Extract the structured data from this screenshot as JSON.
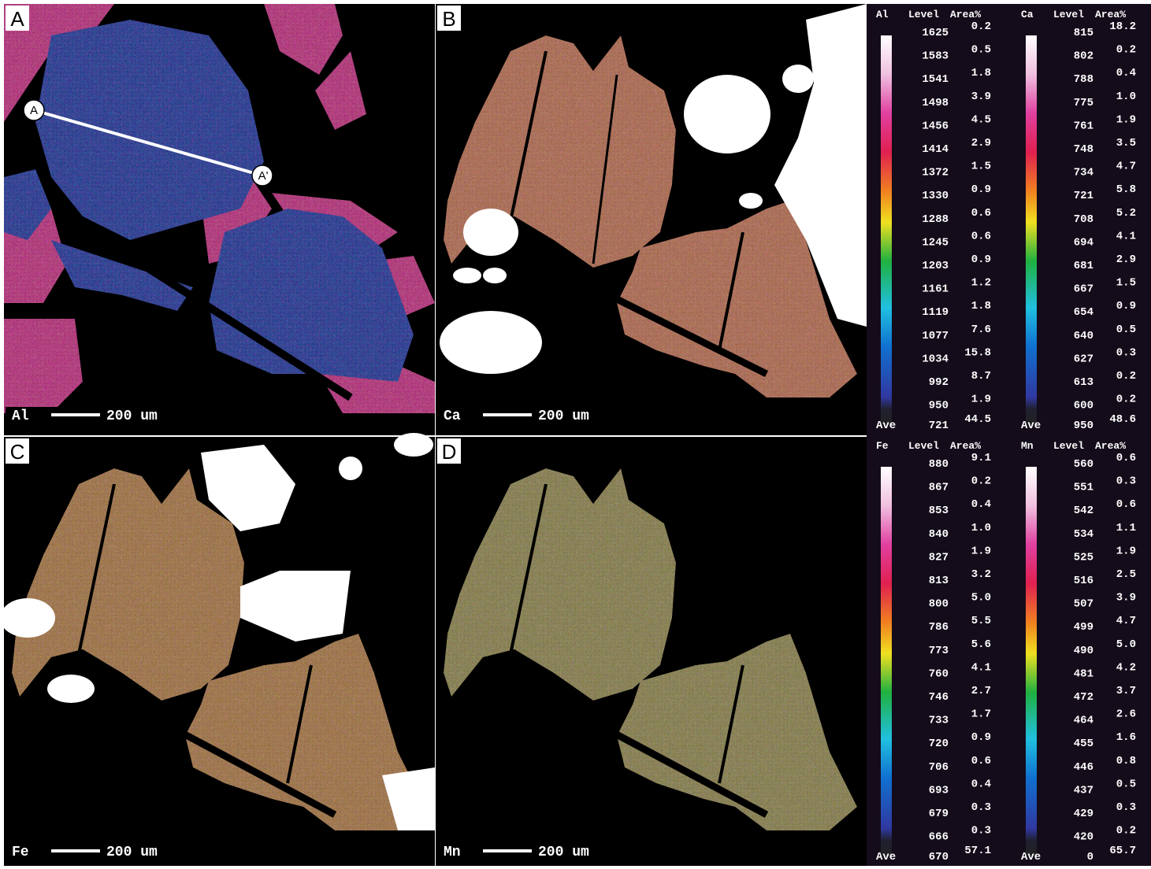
{
  "panels": [
    {
      "letter": "A",
      "element": "Al",
      "scale": "200 um"
    },
    {
      "letter": "B",
      "element": "Ca",
      "scale": "200 um"
    },
    {
      "letter": "C",
      "element": "Fe",
      "scale": "200 um"
    },
    {
      "letter": "D",
      "element": "Mn",
      "scale": "200 um"
    }
  ],
  "profile": {
    "start": "A",
    "end": "A'"
  },
  "legends": [
    {
      "element": "Al",
      "level_header": "Level",
      "area_header": "Area%",
      "levels": [
        "1625",
        "1583",
        "1541",
        "1498",
        "1456",
        "1414",
        "1372",
        "1330",
        "1288",
        "1245",
        "1203",
        "1161",
        "1119",
        "1077",
        "1034",
        "992",
        "950"
      ],
      "areas": [
        "0.2",
        "0.5",
        "1.8",
        "3.9",
        "4.5",
        "2.9",
        "1.5",
        "0.9",
        "0.6",
        "0.6",
        "0.9",
        "1.2",
        "1.8",
        "7.6",
        "15.8",
        "8.7",
        "1.9"
      ],
      "ave_label": "Ave",
      "ave_level": "721",
      "ave_area": "44.5"
    },
    {
      "element": "Ca",
      "level_header": "Level",
      "area_header": "Area%",
      "levels": [
        "815",
        "802",
        "788",
        "775",
        "761",
        "748",
        "734",
        "721",
        "708",
        "694",
        "681",
        "667",
        "654",
        "640",
        "627",
        "613",
        "600"
      ],
      "areas": [
        "18.2",
        "0.2",
        "0.4",
        "1.0",
        "1.9",
        "3.5",
        "4.7",
        "5.8",
        "5.2",
        "4.1",
        "2.9",
        "1.5",
        "0.9",
        "0.5",
        "0.3",
        "0.2",
        "0.2"
      ],
      "ave_label": "Ave",
      "ave_level": "950",
      "ave_area": "48.6"
    },
    {
      "element": "Fe",
      "level_header": "Level",
      "area_header": "Area%",
      "levels": [
        "880",
        "867",
        "853",
        "840",
        "827",
        "813",
        "800",
        "786",
        "773",
        "760",
        "746",
        "733",
        "720",
        "706",
        "693",
        "679",
        "666"
      ],
      "areas": [
        "9.1",
        "0.2",
        "0.4",
        "1.0",
        "1.9",
        "3.2",
        "5.0",
        "5.5",
        "5.6",
        "4.1",
        "2.7",
        "1.7",
        "0.9",
        "0.6",
        "0.4",
        "0.3",
        "0.3"
      ],
      "ave_label": "Ave",
      "ave_level": "670",
      "ave_area": "57.1"
    },
    {
      "element": "Mn",
      "level_header": "Level",
      "area_header": "Area%",
      "levels": [
        "560",
        "551",
        "542",
        "534",
        "525",
        "516",
        "507",
        "499",
        "490",
        "481",
        "472",
        "464",
        "455",
        "446",
        "437",
        "429",
        "420"
      ],
      "areas": [
        "0.6",
        "0.3",
        "0.6",
        "1.1",
        "1.9",
        "2.5",
        "3.9",
        "4.7",
        "5.0",
        "4.2",
        "3.7",
        "2.6",
        "1.6",
        "0.8",
        "0.5",
        "0.3",
        "0.2"
      ],
      "ave_label": "Ave",
      "ave_level": "0",
      "ave_area": "65.7"
    }
  ]
}
